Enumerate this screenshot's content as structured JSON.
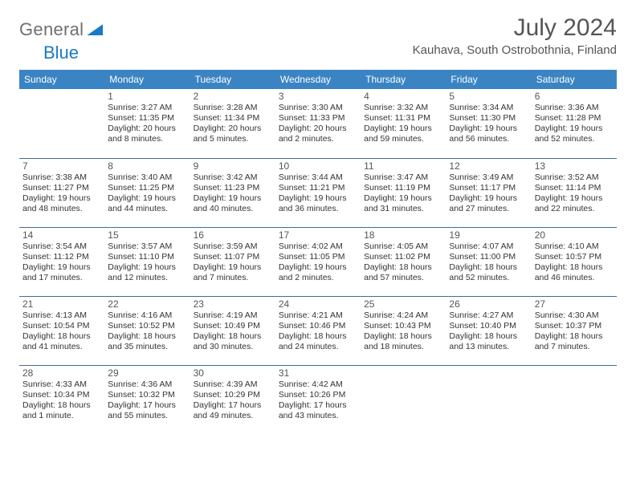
{
  "brand": {
    "word1": "General",
    "word2": "Blue"
  },
  "title": "July 2024",
  "location": "Kauhava, South Ostrobothnia, Finland",
  "colors": {
    "header_bg": "#3b84c4",
    "header_text": "#ffffff",
    "row_divider": "#3b6f99",
    "brand_gray": "#6f6f6f",
    "brand_blue": "#1a7ac5",
    "title_color": "#555555",
    "body_text": "#333333",
    "page_bg": "#ffffff"
  },
  "weekdays": [
    "Sunday",
    "Monday",
    "Tuesday",
    "Wednesday",
    "Thursday",
    "Friday",
    "Saturday"
  ],
  "weeks": [
    [
      null,
      {
        "n": "1",
        "sr": "3:27 AM",
        "ss": "11:35 PM",
        "dl": "20 hours and 8 minutes."
      },
      {
        "n": "2",
        "sr": "3:28 AM",
        "ss": "11:34 PM",
        "dl": "20 hours and 5 minutes."
      },
      {
        "n": "3",
        "sr": "3:30 AM",
        "ss": "11:33 PM",
        "dl": "20 hours and 2 minutes."
      },
      {
        "n": "4",
        "sr": "3:32 AM",
        "ss": "11:31 PM",
        "dl": "19 hours and 59 minutes."
      },
      {
        "n": "5",
        "sr": "3:34 AM",
        "ss": "11:30 PM",
        "dl": "19 hours and 56 minutes."
      },
      {
        "n": "6",
        "sr": "3:36 AM",
        "ss": "11:28 PM",
        "dl": "19 hours and 52 minutes."
      }
    ],
    [
      {
        "n": "7",
        "sr": "3:38 AM",
        "ss": "11:27 PM",
        "dl": "19 hours and 48 minutes."
      },
      {
        "n": "8",
        "sr": "3:40 AM",
        "ss": "11:25 PM",
        "dl": "19 hours and 44 minutes."
      },
      {
        "n": "9",
        "sr": "3:42 AM",
        "ss": "11:23 PM",
        "dl": "19 hours and 40 minutes."
      },
      {
        "n": "10",
        "sr": "3:44 AM",
        "ss": "11:21 PM",
        "dl": "19 hours and 36 minutes."
      },
      {
        "n": "11",
        "sr": "3:47 AM",
        "ss": "11:19 PM",
        "dl": "19 hours and 31 minutes."
      },
      {
        "n": "12",
        "sr": "3:49 AM",
        "ss": "11:17 PM",
        "dl": "19 hours and 27 minutes."
      },
      {
        "n": "13",
        "sr": "3:52 AM",
        "ss": "11:14 PM",
        "dl": "19 hours and 22 minutes."
      }
    ],
    [
      {
        "n": "14",
        "sr": "3:54 AM",
        "ss": "11:12 PM",
        "dl": "19 hours and 17 minutes."
      },
      {
        "n": "15",
        "sr": "3:57 AM",
        "ss": "11:10 PM",
        "dl": "19 hours and 12 minutes."
      },
      {
        "n": "16",
        "sr": "3:59 AM",
        "ss": "11:07 PM",
        "dl": "19 hours and 7 minutes."
      },
      {
        "n": "17",
        "sr": "4:02 AM",
        "ss": "11:05 PM",
        "dl": "19 hours and 2 minutes."
      },
      {
        "n": "18",
        "sr": "4:05 AM",
        "ss": "11:02 PM",
        "dl": "18 hours and 57 minutes."
      },
      {
        "n": "19",
        "sr": "4:07 AM",
        "ss": "11:00 PM",
        "dl": "18 hours and 52 minutes."
      },
      {
        "n": "20",
        "sr": "4:10 AM",
        "ss": "10:57 PM",
        "dl": "18 hours and 46 minutes."
      }
    ],
    [
      {
        "n": "21",
        "sr": "4:13 AM",
        "ss": "10:54 PM",
        "dl": "18 hours and 41 minutes."
      },
      {
        "n": "22",
        "sr": "4:16 AM",
        "ss": "10:52 PM",
        "dl": "18 hours and 35 minutes."
      },
      {
        "n": "23",
        "sr": "4:19 AM",
        "ss": "10:49 PM",
        "dl": "18 hours and 30 minutes."
      },
      {
        "n": "24",
        "sr": "4:21 AM",
        "ss": "10:46 PM",
        "dl": "18 hours and 24 minutes."
      },
      {
        "n": "25",
        "sr": "4:24 AM",
        "ss": "10:43 PM",
        "dl": "18 hours and 18 minutes."
      },
      {
        "n": "26",
        "sr": "4:27 AM",
        "ss": "10:40 PM",
        "dl": "18 hours and 13 minutes."
      },
      {
        "n": "27",
        "sr": "4:30 AM",
        "ss": "10:37 PM",
        "dl": "18 hours and 7 minutes."
      }
    ],
    [
      {
        "n": "28",
        "sr": "4:33 AM",
        "ss": "10:34 PM",
        "dl": "18 hours and 1 minute."
      },
      {
        "n": "29",
        "sr": "4:36 AM",
        "ss": "10:32 PM",
        "dl": "17 hours and 55 minutes."
      },
      {
        "n": "30",
        "sr": "4:39 AM",
        "ss": "10:29 PM",
        "dl": "17 hours and 49 minutes."
      },
      {
        "n": "31",
        "sr": "4:42 AM",
        "ss": "10:26 PM",
        "dl": "17 hours and 43 minutes."
      },
      null,
      null,
      null
    ]
  ],
  "labels": {
    "sunrise": "Sunrise: ",
    "sunset": "Sunset: ",
    "daylight": "Daylight: "
  }
}
